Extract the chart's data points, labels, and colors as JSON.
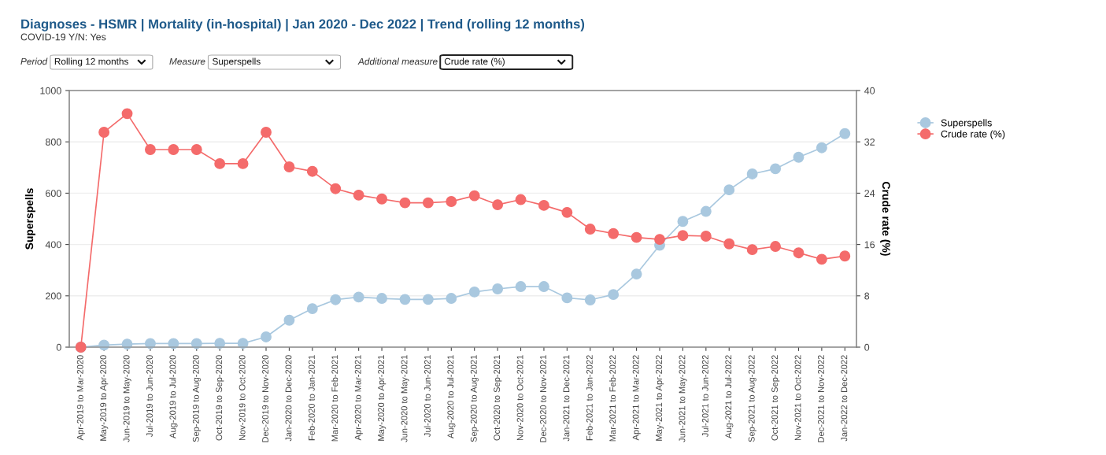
{
  "chart_data": {
    "type": "line",
    "title": "Diagnoses - HSMR | Mortality (in-hospital) | Jan 2020 - Dec 2022 | Trend (rolling 12 months)",
    "annotations": [
      "COVID-19 Y/N: Yes",
      "Period",
      "Rolling 12 months",
      "Measure",
      "Superspells",
      "Additional measure",
      "Crude rate (%)"
    ],
    "categories": [
      "Apr-2019 to Mar-2020",
      "May-2019 to Apr-2020",
      "Jun-2019 to May-2020",
      "Jul-2019 to Jun-2020",
      "Aug-2019 to Jul-2020",
      "Sep-2019 to Aug-2020",
      "Oct-2019 to Sep-2020",
      "Nov-2019 to Oct-2020",
      "Dec-2019 to Nov-2020",
      "Jan-2020 to Dec-2020",
      "Feb-2020 to Jan-2021",
      "Mar-2020 to Feb-2021",
      "Apr-2020 to Mar-2021",
      "May-2020 to Apr-2021",
      "Jun-2020 to May-2021",
      "Jul-2020 to Jun-2021",
      "Aug-2020 to Jul-2021",
      "Sep-2020 to Aug-2021",
      "Oct-2020 to Sep-2021",
      "Nov-2020 to Oct-2021",
      "Dec-2020 to Nov-2021",
      "Jan-2021 to Dec-2021",
      "Feb-2021 to Jan-2022",
      "Mar-2021 to Feb-2022",
      "Apr-2021 to Mar-2022",
      "May-2021 to Apr-2022",
      "Jun-2021 to May-2022",
      "Jul-2021 to Jun-2022",
      "Aug-2021 to Jul-2022",
      "Sep-2021 to Aug-2022",
      "Oct-2021 to Sep-2022",
      "Nov-2021 to Oct-2022",
      "Dec-2021 to Nov-2022",
      "Jan-2022 to Dec-2022"
    ],
    "series": [
      {
        "name": "Superspells",
        "color": "#a9c8df",
        "values": [
          0,
          8,
          12,
          14,
          14,
          14,
          15,
          15,
          40,
          105,
          150,
          185,
          195,
          190,
          186,
          186,
          190,
          215,
          227,
          236,
          236,
          192,
          184,
          205,
          285,
          397,
          490,
          529,
          613,
          675,
          695,
          740,
          777,
          832
        ]
      },
      {
        "name": "Crude rate (%)",
        "color": "#f46b6b",
        "axis": "y2",
        "values": [
          0,
          33.5,
          36.4,
          30.8,
          30.8,
          30.8,
          28.6,
          28.6,
          33.5,
          28.1,
          27.4,
          24.7,
          23.7,
          23.1,
          22.5,
          22.5,
          22.7,
          23.6,
          22.2,
          23.0,
          22.1,
          21.0,
          18.4,
          17.7,
          17.1,
          16.8,
          17.4,
          17.3,
          16.1,
          15.2,
          15.7,
          14.7,
          13.7,
          14.2
        ]
      }
    ],
    "ylabel": "Superspells",
    "y2label": "Crude rate (%)",
    "ylim": [
      0,
      1000
    ],
    "yticks": [
      0,
      200,
      400,
      600,
      800,
      1000
    ],
    "y2lim": [
      0,
      40
    ],
    "y2ticks": [
      0,
      8,
      16,
      24,
      32,
      40
    ],
    "grid": "y",
    "legend": "top right",
    "marker": "circle",
    "line_style": "solid"
  }
}
